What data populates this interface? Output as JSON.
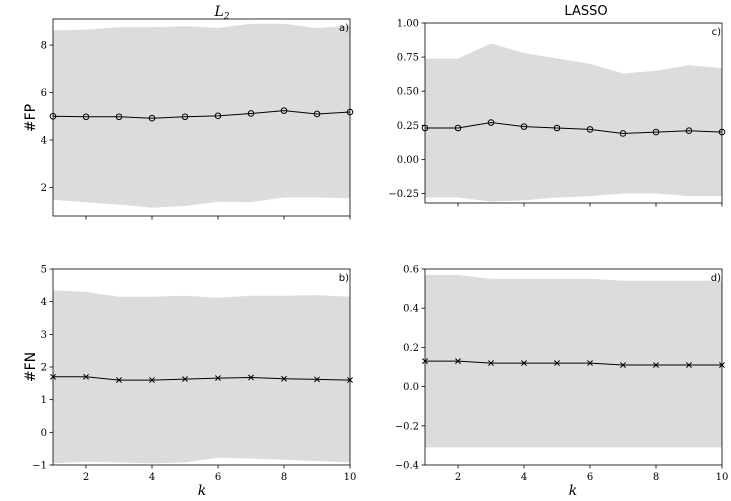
{
  "figure": {
    "col_titles": {
      "left_main": "L",
      "left_sub": "2",
      "right": "LASSO"
    },
    "row_labels": {
      "top": "#FP",
      "bottom": "#FN"
    },
    "xlabel": "k"
  },
  "chart_data": [
    {
      "panel": "a)",
      "type": "line",
      "marker": "circle",
      "x": [
        1,
        2,
        3,
        4,
        5,
        6,
        7,
        8,
        9,
        10
      ],
      "y": [
        5.0,
        4.98,
        4.98,
        4.92,
        4.98,
        5.02,
        5.12,
        5.24,
        5.1,
        5.18
      ],
      "band_upper": [
        8.62,
        8.65,
        8.75,
        8.75,
        8.8,
        8.72,
        8.9,
        8.9,
        8.72,
        8.82
      ],
      "band_lower": [
        1.48,
        1.38,
        1.28,
        1.15,
        1.22,
        1.4,
        1.38,
        1.58,
        1.58,
        1.55
      ],
      "xlim": [
        1,
        10
      ],
      "ylim": [
        0.8,
        9.1
      ],
      "xticks": [
        2,
        4,
        6,
        8,
        10
      ],
      "show_xtick_labels": false,
      "yticks": [
        2,
        4,
        6,
        8
      ],
      "ytick_labels": [
        "2",
        "4",
        "6",
        "8"
      ]
    },
    {
      "panel": "b)",
      "type": "line",
      "marker": "x",
      "x": [
        1,
        2,
        3,
        4,
        5,
        6,
        7,
        8,
        9,
        10
      ],
      "y": [
        1.7,
        1.7,
        1.6,
        1.6,
        1.63,
        1.66,
        1.68,
        1.64,
        1.62,
        1.6
      ],
      "band_upper": [
        4.35,
        4.3,
        4.15,
        4.15,
        4.18,
        4.12,
        4.18,
        4.18,
        4.2,
        4.15
      ],
      "band_lower": [
        -0.95,
        -0.9,
        -0.92,
        -0.95,
        -0.92,
        -0.78,
        -0.8,
        -0.84,
        -0.88,
        -0.92
      ],
      "xlim": [
        1,
        10
      ],
      "ylim": [
        -1,
        5
      ],
      "xticks": [
        2,
        4,
        6,
        8,
        10
      ],
      "show_xtick_labels": true,
      "xtick_labels": [
        "2",
        "4",
        "6",
        "8",
        "10"
      ],
      "yticks": [
        -1,
        0,
        1,
        2,
        3,
        4,
        5
      ],
      "ytick_labels": [
        "−1",
        "0",
        "1",
        "2",
        "3",
        "4",
        "5"
      ]
    },
    {
      "panel": "c)",
      "type": "line",
      "marker": "circle",
      "x": [
        1,
        2,
        3,
        4,
        5,
        6,
        7,
        8,
        9,
        10
      ],
      "y": [
        0.23,
        0.23,
        0.27,
        0.24,
        0.23,
        0.22,
        0.19,
        0.2,
        0.21,
        0.2
      ],
      "band_upper": [
        0.74,
        0.74,
        0.85,
        0.78,
        0.74,
        0.7,
        0.63,
        0.65,
        0.69,
        0.67
      ],
      "band_lower": [
        -0.28,
        -0.28,
        -0.31,
        -0.3,
        -0.28,
        -0.27,
        -0.25,
        -0.25,
        -0.27,
        -0.27
      ],
      "xlim": [
        1,
        10
      ],
      "ylim": [
        -0.32,
        1.0
      ],
      "xticks": [
        2,
        4,
        6,
        8,
        10
      ],
      "show_xtick_labels": false,
      "yticks": [
        -0.25,
        0,
        0.25,
        0.5,
        0.75,
        1.0
      ],
      "ytick_labels": [
        "−0.25",
        "0.00",
        "0.25",
        "0.50",
        "0.75",
        "1.00"
      ]
    },
    {
      "panel": "d)",
      "type": "line",
      "marker": "x",
      "x": [
        1,
        2,
        3,
        4,
        5,
        6,
        7,
        8,
        9,
        10
      ],
      "y": [
        0.13,
        0.13,
        0.12,
        0.12,
        0.12,
        0.12,
        0.11,
        0.11,
        0.11,
        0.11
      ],
      "band_upper": [
        0.57,
        0.57,
        0.55,
        0.55,
        0.55,
        0.55,
        0.54,
        0.54,
        0.54,
        0.54
      ],
      "band_lower": [
        -0.31,
        -0.31,
        -0.31,
        -0.31,
        -0.31,
        -0.31,
        -0.31,
        -0.31,
        -0.31,
        -0.31
      ],
      "xlim": [
        1,
        10
      ],
      "ylim": [
        -0.4,
        0.6
      ],
      "xticks": [
        2,
        4,
        6,
        8,
        10
      ],
      "show_xtick_labels": true,
      "xtick_labels": [
        "2",
        "4",
        "6",
        "8",
        "10"
      ],
      "yticks": [
        -0.4,
        -0.2,
        0,
        0.2,
        0.4,
        0.6
      ],
      "ytick_labels": [
        "−0.4",
        "−0.2",
        "0.0",
        "0.2",
        "0.4",
        "0.6"
      ]
    }
  ],
  "colors": {
    "band": "#dcdcdc",
    "line": "#000000",
    "axis": "#000000"
  }
}
